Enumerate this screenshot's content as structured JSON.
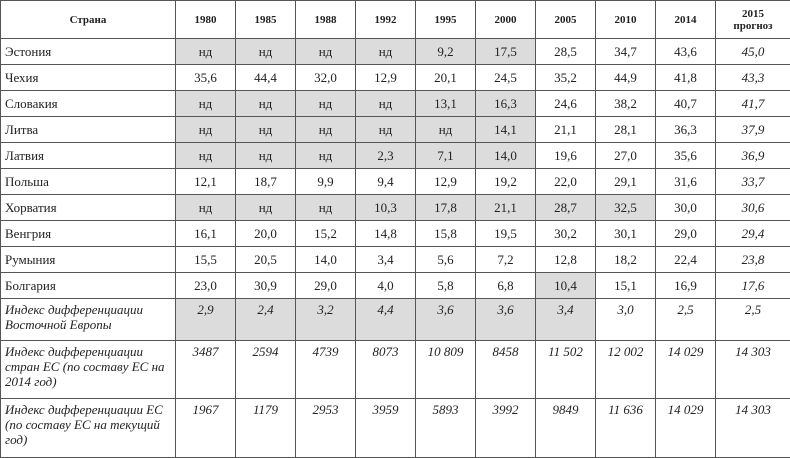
{
  "table": {
    "header": [
      "Страна",
      "1980",
      "1985",
      "1988",
      "1992",
      "1995",
      "2000",
      "2005",
      "2010",
      "2014",
      "2015\nпрогноз"
    ],
    "rows": [
      [
        "Эстония",
        "нд",
        "нд",
        "нд",
        "нд",
        "9,2",
        "17,5",
        "28,5",
        "34,7",
        "43,6",
        "45,0"
      ],
      [
        "Чехия",
        "35,6",
        "44,4",
        "32,0",
        "12,9",
        "20,1",
        "24,5",
        "35,2",
        "44,9",
        "41,8",
        "43,3"
      ],
      [
        "Словакия",
        "нд",
        "нд",
        "нд",
        "нд",
        "13,1",
        "16,3",
        "24,6",
        "38,2",
        "40,7",
        "41,7"
      ],
      [
        "Литва",
        "нд",
        "нд",
        "нд",
        "нд",
        "нд",
        "14,1",
        "21,1",
        "28,1",
        "36,3",
        "37,9"
      ],
      [
        "Латвия",
        "нд",
        "нд",
        "нд",
        "2,3",
        "7,1",
        "14,0",
        "19,6",
        "27,0",
        "35,6",
        "36,9"
      ],
      [
        "Польша",
        "12,1",
        "18,7",
        "9,9",
        "9,4",
        "12,9",
        "19,2",
        "22,0",
        "29,1",
        "31,6",
        "33,7"
      ],
      [
        "Хорватия",
        "нд",
        "нд",
        "нд",
        "10,3",
        "17,8",
        "21,1",
        "28,7",
        "32,5",
        "30,0",
        "30,6"
      ],
      [
        "Венгрия",
        "16,1",
        "20,0",
        "15,2",
        "14,8",
        "15,8",
        "19,5",
        "30,2",
        "30,1",
        "29,0",
        "29,4"
      ],
      [
        "Румыния",
        "15,5",
        "20,5",
        "14,0",
        "3,4",
        "5,6",
        "7,2",
        "12,8",
        "18,2",
        "22,4",
        "23,8"
      ],
      [
        "Болгария",
        "23,0",
        "30,9",
        "29,0",
        "4,0",
        "5,8",
        "6,8",
        "10,4",
        "15,1",
        "16,9",
        "17,6"
      ],
      [
        "Индекс дифференциации Восточной Европы",
        "2,9",
        "2,4",
        "3,2",
        "4,4",
        "3,6",
        "3,6",
        "3,4",
        "3,0",
        "2,5",
        "2,5"
      ],
      [
        "Индекс дифференциации стран ЕС (по составу ЕС на 2014 год)",
        "3487",
        "2594",
        "4739",
        "8073",
        "10 809",
        "8458",
        "11 502",
        "12 002",
        "14 029",
        "14 303"
      ],
      [
        "Индекс дифференциации ЕС (по составу ЕС на текущий год)",
        "1967",
        "1179",
        "2953",
        "3959",
        "5893",
        "3992",
        "9849",
        "11 636",
        "14 029",
        "14 303"
      ]
    ]
  }
}
